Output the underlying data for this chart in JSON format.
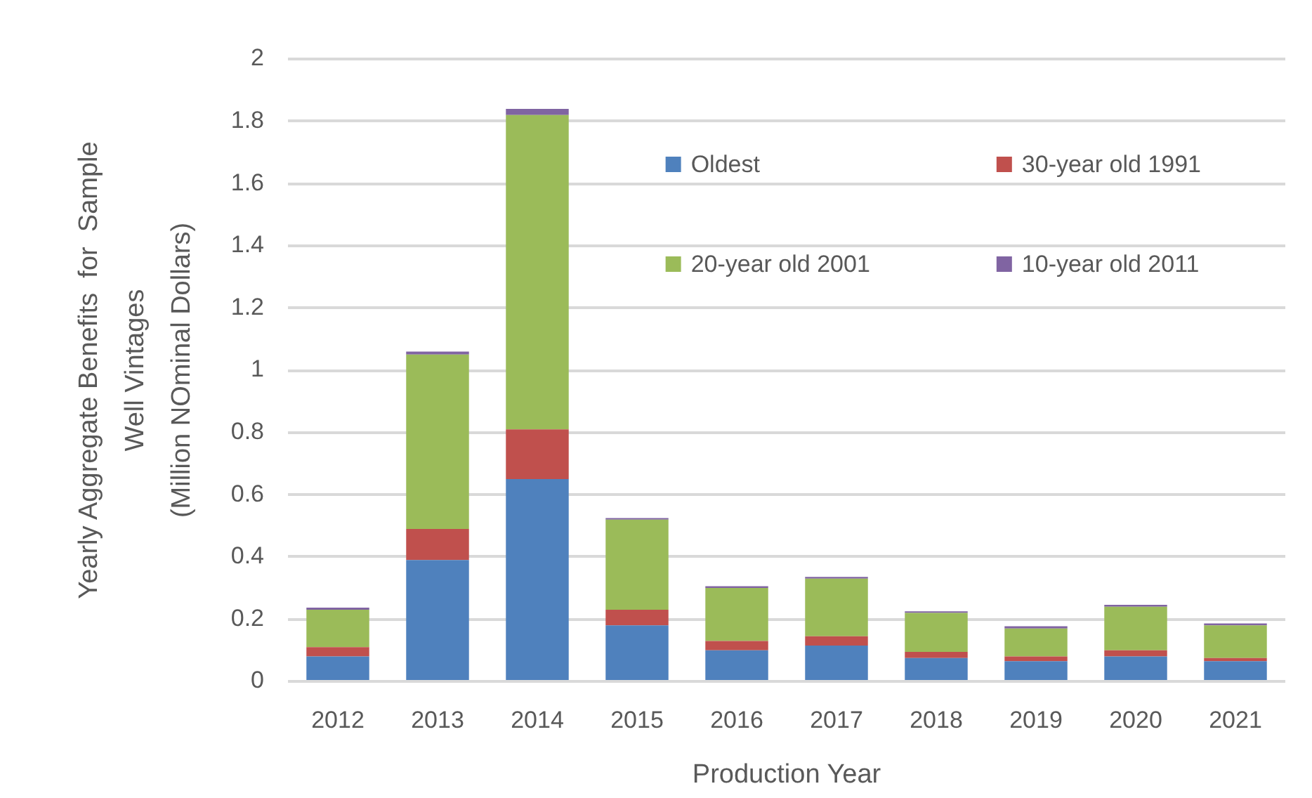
{
  "chart_data": {
    "type": "bar",
    "stacked": true,
    "categories": [
      "2012",
      "2013",
      "2014",
      "2015",
      "2016",
      "2017",
      "2018",
      "2019",
      "2020",
      "2021"
    ],
    "xlabel": "Production Year",
    "ylabel": "Yearly Aggregate Benefits  for  Sample\nWell Vintages\n(Million NOminal Dollars)",
    "series": [
      {
        "name": "Oldest",
        "color": "#4f81bd",
        "values": [
          0.08,
          0.39,
          0.65,
          0.18,
          0.1,
          0.115,
          0.075,
          0.065,
          0.08,
          0.065
        ]
      },
      {
        "name": "30-year old 1991",
        "color": "#c0504d",
        "values": [
          0.03,
          0.1,
          0.16,
          0.05,
          0.03,
          0.03,
          0.02,
          0.015,
          0.02,
          0.01
        ]
      },
      {
        "name": "20-year old 2001",
        "color": "#9bbb59",
        "values": [
          0.12,
          0.56,
          1.01,
          0.29,
          0.17,
          0.185,
          0.125,
          0.09,
          0.14,
          0.105
        ]
      },
      {
        "name": "10-year old 2011",
        "color": "#8064a2",
        "values": [
          0.007,
          0.01,
          0.02,
          0.005,
          0.006,
          0.006,
          0.005,
          0.007,
          0.006,
          0.006
        ]
      }
    ],
    "ylim": [
      0,
      2
    ],
    "yticks": [
      0,
      0.2,
      0.4,
      0.6,
      0.8,
      1,
      1.2,
      1.4,
      1.6,
      1.8,
      2
    ],
    "grid": "y",
    "legend": "top right"
  }
}
